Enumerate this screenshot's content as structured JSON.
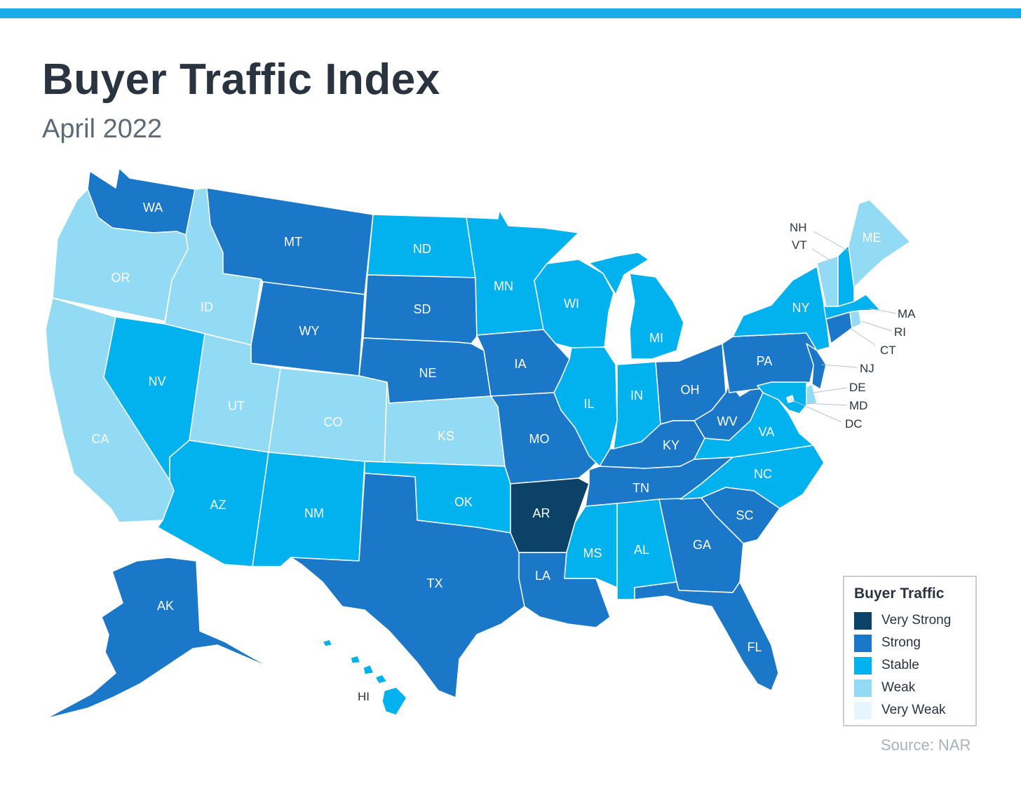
{
  "header": {
    "title": "Buyer Traffic Index",
    "subtitle": "April 2022"
  },
  "colors": {
    "top_bar": "#19ABE8",
    "very_strong": "#0C4268",
    "strong": "#1B78C8",
    "stable": "#01B2EE",
    "weak": "#93DBF4",
    "very_weak": "#E6F6FD"
  },
  "legend": {
    "title": "Buyer Traffic",
    "items": [
      {
        "label": "Very Strong",
        "color": "#0C4268"
      },
      {
        "label": "Strong",
        "color": "#1B78C8"
      },
      {
        "label": "Stable",
        "color": "#01B2EE"
      },
      {
        "label": "Weak",
        "color": "#93DBF4"
      },
      {
        "label": "Very Weak",
        "color": "#E6F6FD"
      }
    ]
  },
  "states": [
    {
      "code": "WA",
      "level": "strong"
    },
    {
      "code": "OR",
      "level": "weak"
    },
    {
      "code": "CA",
      "level": "weak"
    },
    {
      "code": "ID",
      "level": "weak"
    },
    {
      "code": "NV",
      "level": "stable"
    },
    {
      "code": "MT",
      "level": "strong"
    },
    {
      "code": "WY",
      "level": "strong"
    },
    {
      "code": "UT",
      "level": "weak"
    },
    {
      "code": "CO",
      "level": "weak"
    },
    {
      "code": "AZ",
      "level": "stable"
    },
    {
      "code": "NM",
      "level": "stable"
    },
    {
      "code": "ND",
      "level": "stable"
    },
    {
      "code": "SD",
      "level": "strong"
    },
    {
      "code": "NE",
      "level": "strong"
    },
    {
      "code": "KS",
      "level": "weak"
    },
    {
      "code": "OK",
      "level": "stable"
    },
    {
      "code": "TX",
      "level": "strong"
    },
    {
      "code": "MN",
      "level": "stable"
    },
    {
      "code": "IA",
      "level": "strong"
    },
    {
      "code": "MO",
      "level": "strong"
    },
    {
      "code": "AR",
      "level": "very_strong"
    },
    {
      "code": "LA",
      "level": "strong"
    },
    {
      "code": "WI",
      "level": "stable"
    },
    {
      "code": "IL",
      "level": "stable"
    },
    {
      "code": "MI",
      "level": "stable"
    },
    {
      "code": "IN",
      "level": "stable"
    },
    {
      "code": "OH",
      "level": "strong"
    },
    {
      "code": "KY",
      "level": "strong"
    },
    {
      "code": "TN",
      "level": "strong"
    },
    {
      "code": "MS",
      "level": "stable"
    },
    {
      "code": "AL",
      "level": "stable"
    },
    {
      "code": "GA",
      "level": "strong"
    },
    {
      "code": "FL",
      "level": "strong"
    },
    {
      "code": "SC",
      "level": "strong"
    },
    {
      "code": "NC",
      "level": "stable"
    },
    {
      "code": "VA",
      "level": "stable"
    },
    {
      "code": "WV",
      "level": "strong"
    },
    {
      "code": "PA",
      "level": "strong"
    },
    {
      "code": "NY",
      "level": "stable"
    },
    {
      "code": "NJ",
      "level": "strong"
    },
    {
      "code": "DE",
      "level": "weak"
    },
    {
      "code": "MD",
      "level": "stable"
    },
    {
      "code": "DC",
      "level": "very_weak"
    },
    {
      "code": "CT",
      "level": "strong"
    },
    {
      "code": "RI",
      "level": "weak"
    },
    {
      "code": "MA",
      "level": "stable"
    },
    {
      "code": "VT",
      "level": "weak"
    },
    {
      "code": "NH",
      "level": "stable"
    },
    {
      "code": "ME",
      "level": "weak"
    },
    {
      "code": "AK",
      "level": "strong"
    },
    {
      "code": "HI",
      "level": "stable"
    }
  ],
  "source": "Source:  NAR"
}
